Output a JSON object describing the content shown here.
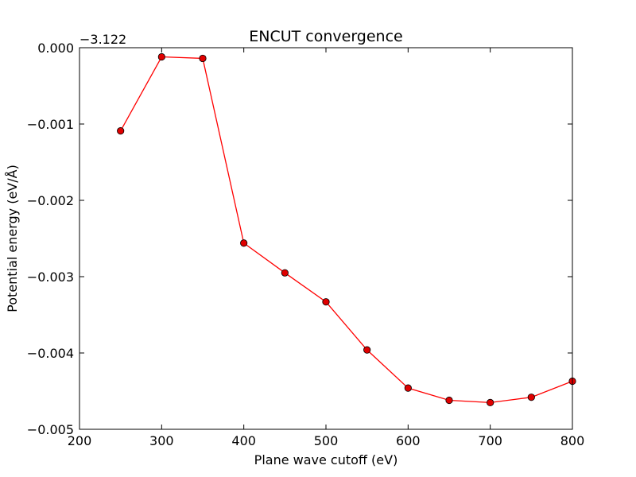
{
  "chart_data": {
    "type": "line",
    "title": "ENCUT convergence",
    "xlabel": "Plane wave cutoff (eV)",
    "ylabel": "Potential energy (eV/Å)",
    "y_offset_label": "−3.122",
    "xlim": [
      200,
      800
    ],
    "ylim": [
      -0.005,
      0.0
    ],
    "x_ticks": [
      200,
      300,
      400,
      500,
      600,
      700,
      800
    ],
    "x_tick_labels": [
      "200",
      "300",
      "400",
      "500",
      "600",
      "700",
      "800"
    ],
    "y_ticks": [
      0.0,
      -0.001,
      -0.002,
      -0.003,
      -0.004,
      -0.005
    ],
    "y_tick_labels": [
      "0.000",
      "−0.001",
      "−0.002",
      "−0.003",
      "−0.004",
      "−0.005"
    ],
    "series": [
      {
        "name": "ENCUT",
        "color": "#ff0000",
        "marker_color": "#e00000",
        "x": [
          250,
          300,
          350,
          400,
          450,
          500,
          550,
          600,
          650,
          700,
          750,
          800
        ],
        "y": [
          -0.00109,
          -0.00012,
          -0.00014,
          -0.00256,
          -0.00295,
          -0.00333,
          -0.00396,
          -0.00446,
          -0.00462,
          -0.00465,
          -0.00458,
          -0.00437
        ]
      }
    ]
  }
}
